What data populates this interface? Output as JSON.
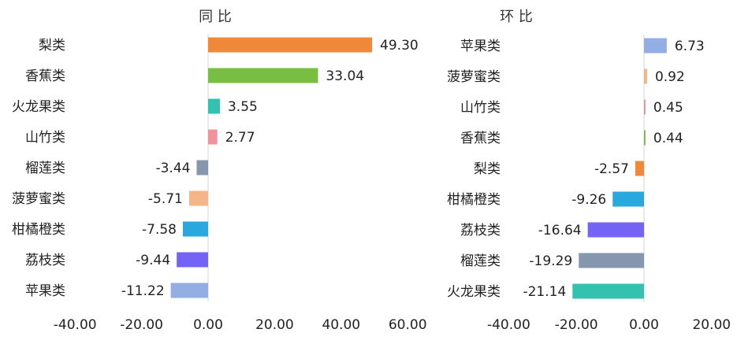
{
  "chart_data": [
    {
      "type": "bar",
      "orientation": "horizontal",
      "title": "同 比",
      "categories": [
        "梨类",
        "香蕉类",
        "火龙果类",
        "山竹类",
        "榴莲类",
        "菠萝蜜类",
        "柑橘橙类",
        "荔枝类",
        "苹果类"
      ],
      "values": [
        49.3,
        33.04,
        3.55,
        2.77,
        -3.44,
        -5.71,
        -7.58,
        -9.44,
        -11.22
      ],
      "value_labels": [
        "49.30",
        "33.04",
        "3.55",
        "2.77",
        "-3.44",
        "-5.71",
        "-7.58",
        "-9.44",
        "-11.22"
      ],
      "colors": [
        "#F0883A",
        "#78BE43",
        "#34C1B0",
        "#F0939B",
        "#8597AE",
        "#F4B589",
        "#29A8E0",
        "#7463F5",
        "#93AEE3"
      ],
      "xlim": [
        -40,
        60
      ],
      "xticks": [
        "-40.00",
        "-20.00",
        "0.00",
        "20.00",
        "40.00",
        "60.00"
      ],
      "xtick_values": [
        -40,
        -20,
        0,
        20,
        40,
        60
      ],
      "grid": false
    },
    {
      "type": "bar",
      "orientation": "horizontal",
      "title": "环 比",
      "categories": [
        "苹果类",
        "菠萝蜜类",
        "山竹类",
        "香蕉类",
        "梨类",
        "柑橘橙类",
        "荔枝类",
        "榴莲类",
        "火龙果类"
      ],
      "values": [
        6.73,
        0.92,
        0.45,
        0.44,
        -2.57,
        -9.26,
        -16.64,
        -19.29,
        -21.14
      ],
      "value_labels": [
        "6.73",
        "0.92",
        "0.45",
        "0.44",
        "-2.57",
        "-9.26",
        "-16.64",
        "-19.29",
        "-21.14"
      ],
      "colors": [
        "#93AEE3",
        "#F4B589",
        "#F0939B",
        "#78BE43",
        "#F0883A",
        "#29A8E0",
        "#7463F5",
        "#8597AE",
        "#34C1B0"
      ],
      "xlim": [
        -40,
        20
      ],
      "xticks": [
        "-40.00",
        "-20.00",
        "0.00",
        "20.00"
      ],
      "xtick_values": [
        -40,
        -20,
        0,
        20
      ],
      "grid": false
    }
  ]
}
